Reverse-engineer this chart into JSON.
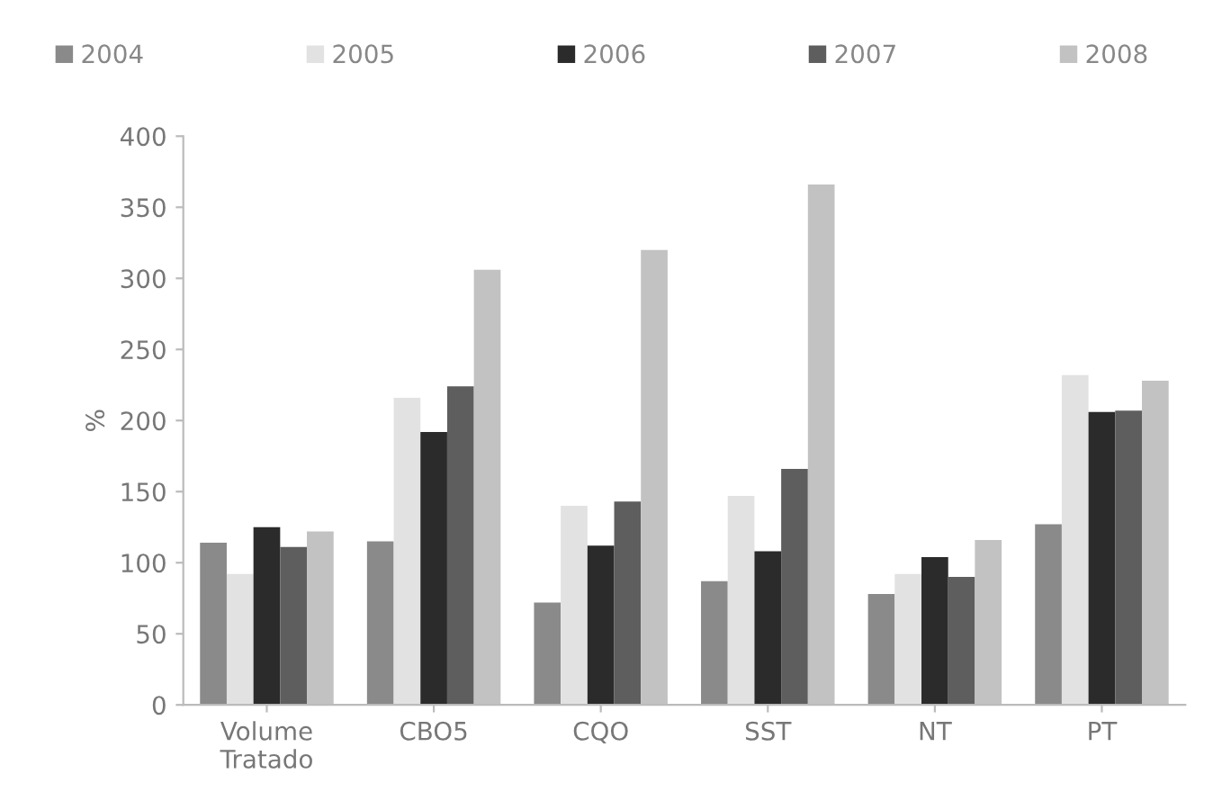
{
  "chart_data": {
    "type": "bar",
    "ylabel": "%",
    "categories": [
      "Volume\nTratado",
      "CBO5",
      "CQO",
      "SST",
      "NT",
      "PT"
    ],
    "series": [
      {
        "name": "2004",
        "color": "#8a8a8a",
        "values": [
          114,
          115,
          72,
          87,
          78,
          127
        ]
      },
      {
        "name": "2005",
        "color": "#e2e2e2",
        "values": [
          92,
          216,
          140,
          147,
          92,
          232
        ]
      },
      {
        "name": "2006",
        "color": "#2b2b2b",
        "values": [
          125,
          192,
          112,
          108,
          104,
          206
        ]
      },
      {
        "name": "2007",
        "color": "#5e5e5e",
        "values": [
          111,
          224,
          143,
          166,
          90,
          207
        ]
      },
      {
        "name": "2008",
        "color": "#c2c2c2",
        "values": [
          122,
          306,
          320,
          366,
          116,
          228
        ]
      }
    ],
    "ylim": [
      0,
      400
    ],
    "yticks": [
      0,
      50,
      100,
      150,
      200,
      250,
      300,
      350,
      400
    ],
    "grid": false,
    "legend": "top"
  }
}
